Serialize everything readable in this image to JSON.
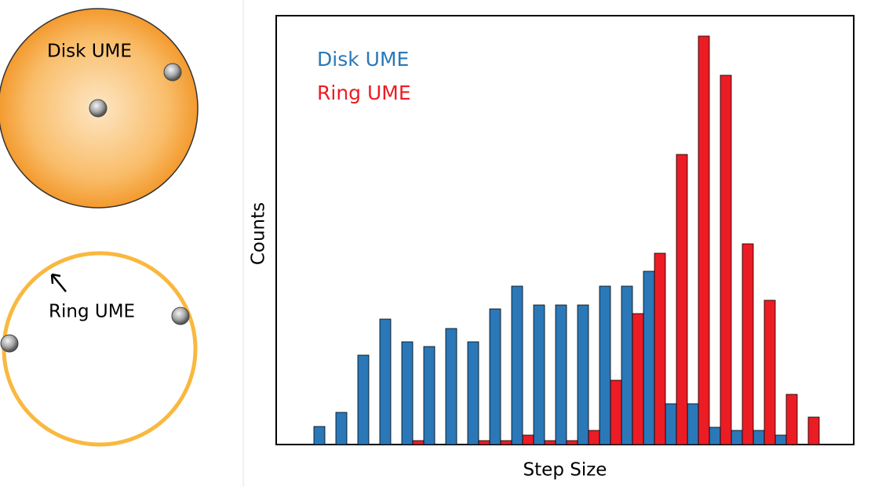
{
  "diagrams": {
    "disk_label": "Disk UME",
    "ring_label": "Ring UME"
  },
  "chart_data": {
    "type": "bar",
    "x_label": "Step Size",
    "y_label": "Counts",
    "categories": [
      null,
      null,
      null,
      null,
      null,
      null,
      null,
      null,
      null,
      null,
      null,
      null,
      null,
      null,
      null,
      null,
      null,
      null,
      null,
      null,
      null,
      null,
      null
    ],
    "series": [
      {
        "name": "Disk UME",
        "color": "#2a78b8",
        "values": [
          23,
          41,
          114,
          160,
          131,
          125,
          148,
          131,
          173,
          202,
          178,
          178,
          178,
          202,
          202,
          221,
          52,
          52,
          22,
          18,
          18,
          12,
          0
        ]
      },
      {
        "name": "Ring UME",
        "color": "#ec1c24",
        "values": [
          0,
          0,
          0,
          0,
          5,
          0,
          0,
          5,
          5,
          12,
          5,
          5,
          18,
          82,
          167,
          244,
          370,
          521,
          471,
          256,
          184,
          64,
          35
        ]
      }
    ],
    "ylim": [
      0,
      547
    ],
    "legend": "upper left"
  }
}
